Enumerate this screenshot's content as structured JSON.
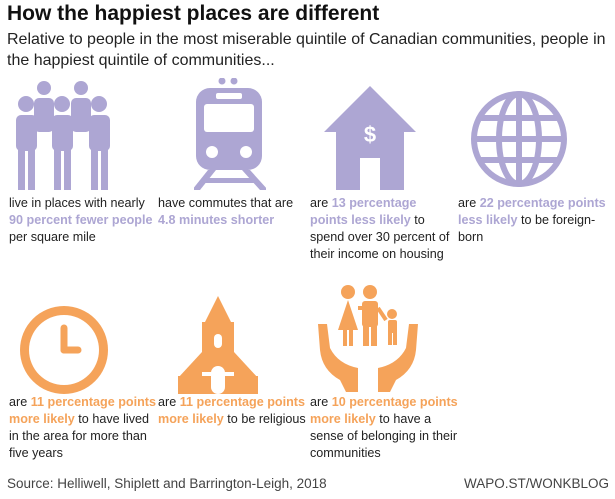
{
  "title": "How the happiest places are different",
  "subtitle": "Relative to people in the most miserable quintile of Canadian communities, people in the happiest quintile of communities...",
  "colors": {
    "purple": "#ada6d3",
    "orange": "#f5a35a",
    "text": "#222222"
  },
  "items": [
    {
      "icon": "people-icon",
      "pre": "live in places with nearly ",
      "hl": "90 percent fewer people",
      "post": " per square mile"
    },
    {
      "icon": "train-icon",
      "pre": "have commutes that are ",
      "hl": "4.8 minutes shorter",
      "post": ""
    },
    {
      "icon": "house-dollar-icon",
      "icon_symbol": "$",
      "pre": "are ",
      "hl": "13 percentage points less likely",
      "post": " to spend over 30 percent of their income on housing"
    },
    {
      "icon": "globe-icon",
      "pre": "are ",
      "hl": "22 percentage points less likely",
      "post": " to be foreign-born"
    },
    {
      "icon": "clock-icon",
      "pre": "are ",
      "hl": "11 percentage points more likely",
      "post": " to have lived in the area for more than five years"
    },
    {
      "icon": "church-icon",
      "pre": "are ",
      "hl": "11 percentage points more likely",
      "post": " to be religious"
    },
    {
      "icon": "family-hands-icon",
      "pre": "are ",
      "hl": "10 percentage points more likely",
      "post": " to have a sense of belonging in their communities"
    }
  ],
  "source": "Source: Helliwell, Shiplett and Barrington-Leigh, 2018",
  "credit": "WAPO.ST/WONKBLOG"
}
